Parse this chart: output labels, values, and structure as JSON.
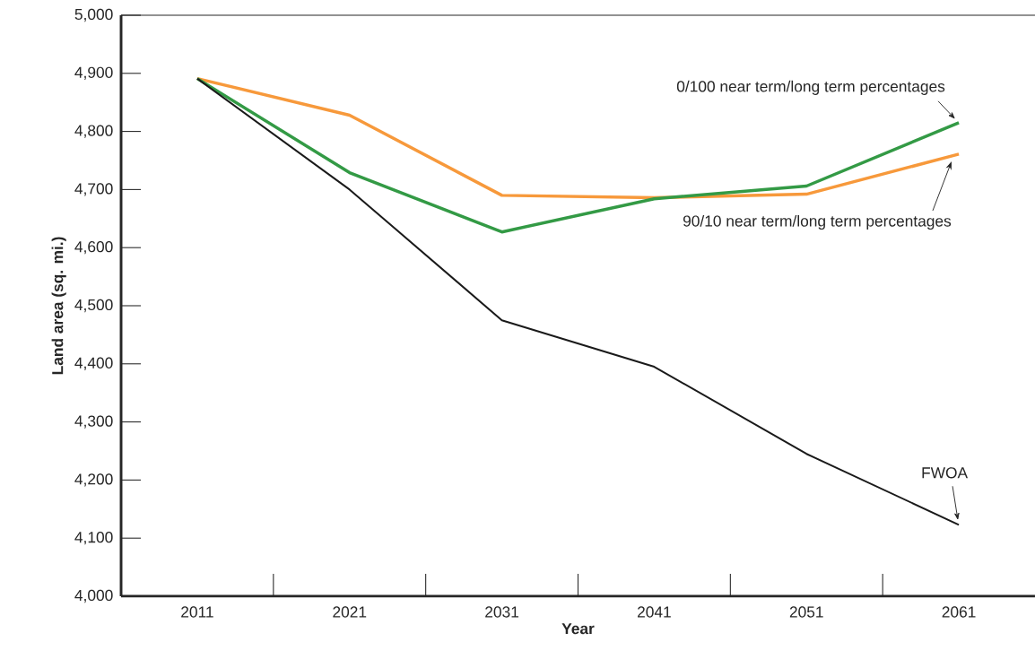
{
  "chart_data": {
    "type": "line",
    "xlabel": "Year",
    "ylabel": "Land area (sq. mi.)",
    "categories": [
      "2011",
      "2021",
      "2031",
      "2041",
      "2051",
      "2061"
    ],
    "series": [
      {
        "color": "#f7993b",
        "values": [
          4891,
          4828,
          4690,
          4686,
          4692,
          4761
        ]
      },
      {
        "color": "#339a45",
        "values": [
          4891,
          4729,
          4627,
          4684,
          4706,
          4815
        ]
      },
      {
        "color": "#1a1a1a",
        "values": [
          4891,
          4700,
          4475,
          4395,
          4245,
          4123
        ]
      }
    ],
    "ylim": [
      4000,
      5000
    ],
    "yticks": [
      {
        "value": 4000,
        "label": "4,000"
      },
      {
        "value": 4100,
        "label": "4,100"
      },
      {
        "value": 4200,
        "label": "4,200"
      },
      {
        "value": 4300,
        "label": "4,300"
      },
      {
        "value": 4400,
        "label": "4,400"
      },
      {
        "value": 4500,
        "label": "4,500"
      },
      {
        "value": 4600,
        "label": "4,600"
      },
      {
        "value": 4700,
        "label": "4,700"
      },
      {
        "value": 4800,
        "label": "4,800"
      },
      {
        "value": 4900,
        "label": "4,900"
      },
      {
        "value": 5000,
        "label": "5,000"
      }
    ],
    "annotations": [
      {
        "text": "0/100 near term/long term percentages",
        "x": "2061",
        "y": 4815
      },
      "90/10 near term/long term percentages",
      {
        "text": "FWOA",
        "x": "2061",
        "y": 4123
      }
    ],
    "grid": false,
    "legend": false,
    "marker": "none",
    "line_style": "solid"
  }
}
